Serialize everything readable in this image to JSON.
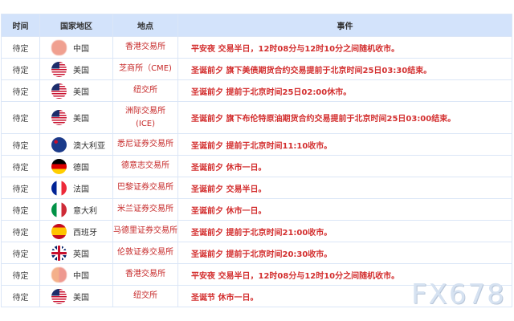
{
  "headers": {
    "time": "时间",
    "country": "国家地区",
    "place": "地点",
    "event": "事件"
  },
  "rows": [
    {
      "time": "待定",
      "flag": "china-flag",
      "country": "中国",
      "place": "香港交易所",
      "event": "平安夜 交易半日，12时08分与12时10分之间随机收市。"
    },
    {
      "time": "待定",
      "flag": "usa-flag",
      "country": "美国",
      "place": "芝商所（CME)",
      "event": "圣诞前夕 旗下美债期货合约交易提前于北京时间25日03:30结束。"
    },
    {
      "time": "待定",
      "flag": "usa-flag",
      "country": "美国",
      "place": "纽交所",
      "event": "圣诞前夕 提前于北京时间25日02:00休市。"
    },
    {
      "time": "待定",
      "flag": "usa-flag",
      "country": "美国",
      "place": "洲际交易所\n(ICE)",
      "event": "圣诞前夕 旗下布伦特原油期货合约交易提前于北京时间25日03:00结束。"
    },
    {
      "time": "待定",
      "flag": "australia-flag",
      "country": "澳大利亚",
      "place": "悉尼证券交易所",
      "event": "圣诞前夕 提前于北京时间11:10收市。"
    },
    {
      "time": "待定",
      "flag": "germany-flag",
      "country": "德国",
      "place": "德意志交易所",
      "event": "圣诞前夕 休市一日。"
    },
    {
      "time": "待定",
      "flag": "france-flag",
      "country": "法国",
      "place": "巴黎证券交易所",
      "event": "圣诞前夕 交易半日。"
    },
    {
      "time": "待定",
      "flag": "italy-flag",
      "country": "意大利",
      "place": "米兰证券交易所",
      "event": "圣诞前夕 休市一日。"
    },
    {
      "time": "待定",
      "flag": "spain-flag",
      "country": "西班牙",
      "place": "马德里证券交易所",
      "event": "圣诞前夕 提前于北京时间21:00收市。"
    },
    {
      "time": "待定",
      "flag": "uk-flag",
      "country": "英国",
      "place": "伦敦证券交易所",
      "event": "圣诞前夕 提前于北京时间20:30收市。"
    },
    {
      "time": "待定",
      "flag": "china-flag",
      "country": "中国",
      "place": "香港交易所",
      "event": "平安夜 交易半日，12时08分与12时10分之间随机收市。"
    },
    {
      "time": "待定",
      "flag": "usa-flag",
      "country": "美国",
      "place": "纽交所",
      "event": "圣诞节 休市一日。"
    }
  ],
  "watermark": "FX678"
}
